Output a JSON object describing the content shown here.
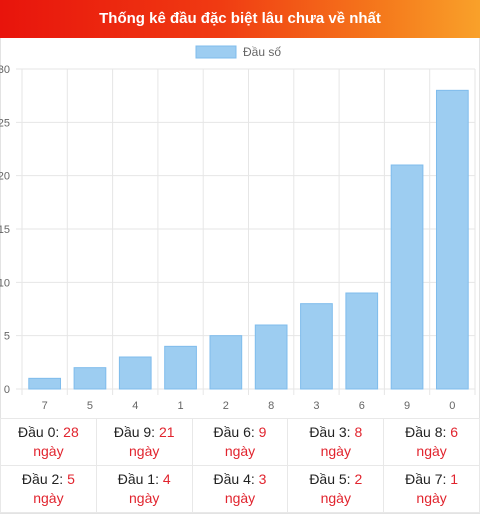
{
  "header": {
    "title": "Thống kê đầu đặc biệt lâu chưa về nhất"
  },
  "colors": {
    "bar": "#9dcdf1",
    "bar_border": "#7fbcec",
    "accent": "#e1242e",
    "grid": "#e6e6e6"
  },
  "chart_data": {
    "type": "bar",
    "categories": [
      "7",
      "5",
      "4",
      "1",
      "2",
      "8",
      "3",
      "6",
      "9",
      "0"
    ],
    "series": [
      {
        "name": "Đầu số",
        "values": [
          1,
          2,
          3,
          4,
          5,
          6,
          8,
          9,
          21,
          28
        ]
      }
    ],
    "ylim": [
      0,
      30
    ],
    "yticks": [
      "0",
      "5",
      "10",
      "15",
      "20",
      "25",
      "30"
    ],
    "grid": true,
    "legend": "top-center"
  },
  "stats": [
    {
      "label": "Đầu 0:",
      "value": "28",
      "unit": "ngày"
    },
    {
      "label": "Đầu 9:",
      "value": "21",
      "unit": "ngày"
    },
    {
      "label": "Đầu 6:",
      "value": "9",
      "unit": "ngày"
    },
    {
      "label": "Đầu 3:",
      "value": "8",
      "unit": "ngày"
    },
    {
      "label": "Đầu 8:",
      "value": "6",
      "unit": "ngày"
    },
    {
      "label": "Đầu 2:",
      "value": "5",
      "unit": "ngày"
    },
    {
      "label": "Đầu 1:",
      "value": "4",
      "unit": "ngày"
    },
    {
      "label": "Đầu 4:",
      "value": "3",
      "unit": "ngày"
    },
    {
      "label": "Đầu 5:",
      "value": "2",
      "unit": "ngày"
    },
    {
      "label": "Đầu 7:",
      "value": "1",
      "unit": "ngày"
    }
  ]
}
